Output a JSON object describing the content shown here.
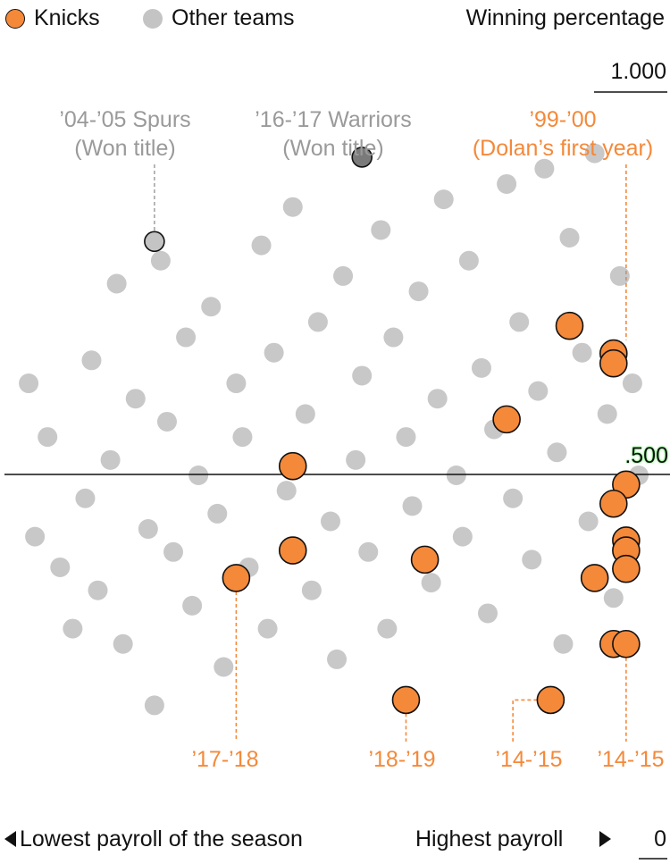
{
  "legend": {
    "knicks_label": "Knicks",
    "other_label": "Other teams",
    "knicks_color": "#f4893a",
    "other_color": "#c4c4c4"
  },
  "ylabel": "Winning percentage",
  "yticks": {
    "top": "1.000",
    "middle": ".500",
    "bottom": "0"
  },
  "xaxis": {
    "left_label": "Lowest payroll of the season",
    "right_label": "Highest payroll"
  },
  "annotations": [
    {
      "id": "spurs",
      "lines": [
        "’04-’05 Spurs",
        "(Won title)"
      ],
      "color": "#9a9a9a"
    },
    {
      "id": "warriors",
      "lines": [
        "’16-’17 Warriors",
        "(Won title)"
      ],
      "color": "#9a9a9a"
    },
    {
      "id": "dolan",
      "lines": [
        "’99-’00",
        "(Dolan’s first year)"
      ],
      "color": "#f4893a"
    },
    {
      "id": "k1718",
      "lines": [
        "’17-’18"
      ],
      "color": "#f4893a"
    },
    {
      "id": "k1819",
      "lines": [
        "’18-’19"
      ],
      "color": "#f4893a"
    },
    {
      "id": "k1415a",
      "lines": [
        "’14-’15"
      ],
      "color": "#f4893a"
    },
    {
      "id": "k1415b",
      "lines": [
        "’14-’15"
      ],
      "color": "#f4893a"
    }
  ],
  "chart_data": {
    "type": "scatter",
    "ylabel": "Winning percentage",
    "xlabel_left": "Lowest payroll of the season",
    "xlabel_right": "Highest payroll",
    "x_note": "payroll rank within season, 0 = lowest, 1 = highest",
    "ylim": [
      0,
      1.0
    ],
    "reference_line": 0.5,
    "series": [
      {
        "name": "Knicks",
        "color": "#f4893a",
        "points": [
          [
            0.95,
            0.659
          ],
          [
            0.95,
            0.646
          ],
          [
            0.88,
            0.695
          ],
          [
            0.78,
            0.573
          ],
          [
            0.44,
            0.512
          ],
          [
            0.97,
            0.488
          ],
          [
            0.95,
            0.463
          ],
          [
            0.44,
            0.402
          ],
          [
            0.97,
            0.415
          ],
          [
            0.97,
            0.402
          ],
          [
            0.97,
            0.378
          ],
          [
            0.65,
            0.39
          ],
          [
            0.35,
            0.366
          ],
          [
            0.92,
            0.366
          ],
          [
            0.95,
            0.28
          ],
          [
            0.97,
            0.28
          ],
          [
            0.62,
            0.207
          ],
          [
            0.85,
            0.207
          ]
        ]
      },
      {
        "name": "Other teams",
        "color": "#c4c4c4",
        "note": "gray dots; darker where they overlap",
        "highlighted": [
          {
            "label": "’04-’05 Spurs",
            "x": 0.22,
            "y": 0.805
          },
          {
            "label": "’16-’17 Warriors",
            "x": 0.55,
            "y": 0.915
          }
        ],
        "points": [
          [
            0.02,
            0.62
          ],
          [
            0.03,
            0.42
          ],
          [
            0.05,
            0.55
          ],
          [
            0.07,
            0.38
          ],
          [
            0.09,
            0.3
          ],
          [
            0.11,
            0.47
          ],
          [
            0.12,
            0.65
          ],
          [
            0.13,
            0.35
          ],
          [
            0.15,
            0.52
          ],
          [
            0.16,
            0.75
          ],
          [
            0.17,
            0.28
          ],
          [
            0.19,
            0.6
          ],
          [
            0.21,
            0.43
          ],
          [
            0.22,
            0.2
          ],
          [
            0.23,
            0.78
          ],
          [
            0.24,
            0.57
          ],
          [
            0.25,
            0.4
          ],
          [
            0.27,
            0.68
          ],
          [
            0.28,
            0.33
          ],
          [
            0.29,
            0.5
          ],
          [
            0.31,
            0.72
          ],
          [
            0.32,
            0.45
          ],
          [
            0.33,
            0.25
          ],
          [
            0.35,
            0.62
          ],
          [
            0.36,
            0.55
          ],
          [
            0.37,
            0.38
          ],
          [
            0.39,
            0.8
          ],
          [
            0.4,
            0.3
          ],
          [
            0.41,
            0.66
          ],
          [
            0.43,
            0.48
          ],
          [
            0.44,
            0.85
          ],
          [
            0.46,
            0.58
          ],
          [
            0.47,
            0.35
          ],
          [
            0.48,
            0.7
          ],
          [
            0.5,
            0.44
          ],
          [
            0.51,
            0.26
          ],
          [
            0.52,
            0.76
          ],
          [
            0.54,
            0.52
          ],
          [
            0.55,
            0.63
          ],
          [
            0.56,
            0.4
          ],
          [
            0.58,
            0.82
          ],
          [
            0.59,
            0.3
          ],
          [
            0.6,
            0.68
          ],
          [
            0.62,
            0.55
          ],
          [
            0.63,
            0.46
          ],
          [
            0.64,
            0.74
          ],
          [
            0.66,
            0.36
          ],
          [
            0.67,
            0.6
          ],
          [
            0.68,
            0.86
          ],
          [
            0.7,
            0.5
          ],
          [
            0.71,
            0.42
          ],
          [
            0.72,
            0.78
          ],
          [
            0.74,
            0.64
          ],
          [
            0.75,
            0.32
          ],
          [
            0.76,
            0.56
          ],
          [
            0.78,
            0.88
          ],
          [
            0.79,
            0.47
          ],
          [
            0.8,
            0.7
          ],
          [
            0.82,
            0.39
          ],
          [
            0.83,
            0.61
          ],
          [
            0.84,
            0.9
          ],
          [
            0.86,
            0.53
          ],
          [
            0.87,
            0.28
          ],
          [
            0.88,
            0.81
          ],
          [
            0.9,
            0.66
          ],
          [
            0.91,
            0.44
          ],
          [
            0.92,
            0.92
          ],
          [
            0.94,
            0.58
          ],
          [
            0.95,
            0.34
          ],
          [
            0.96,
            0.76
          ],
          [
            0.98,
            0.62
          ],
          [
            0.99,
            0.5
          ]
        ]
      }
    ]
  }
}
